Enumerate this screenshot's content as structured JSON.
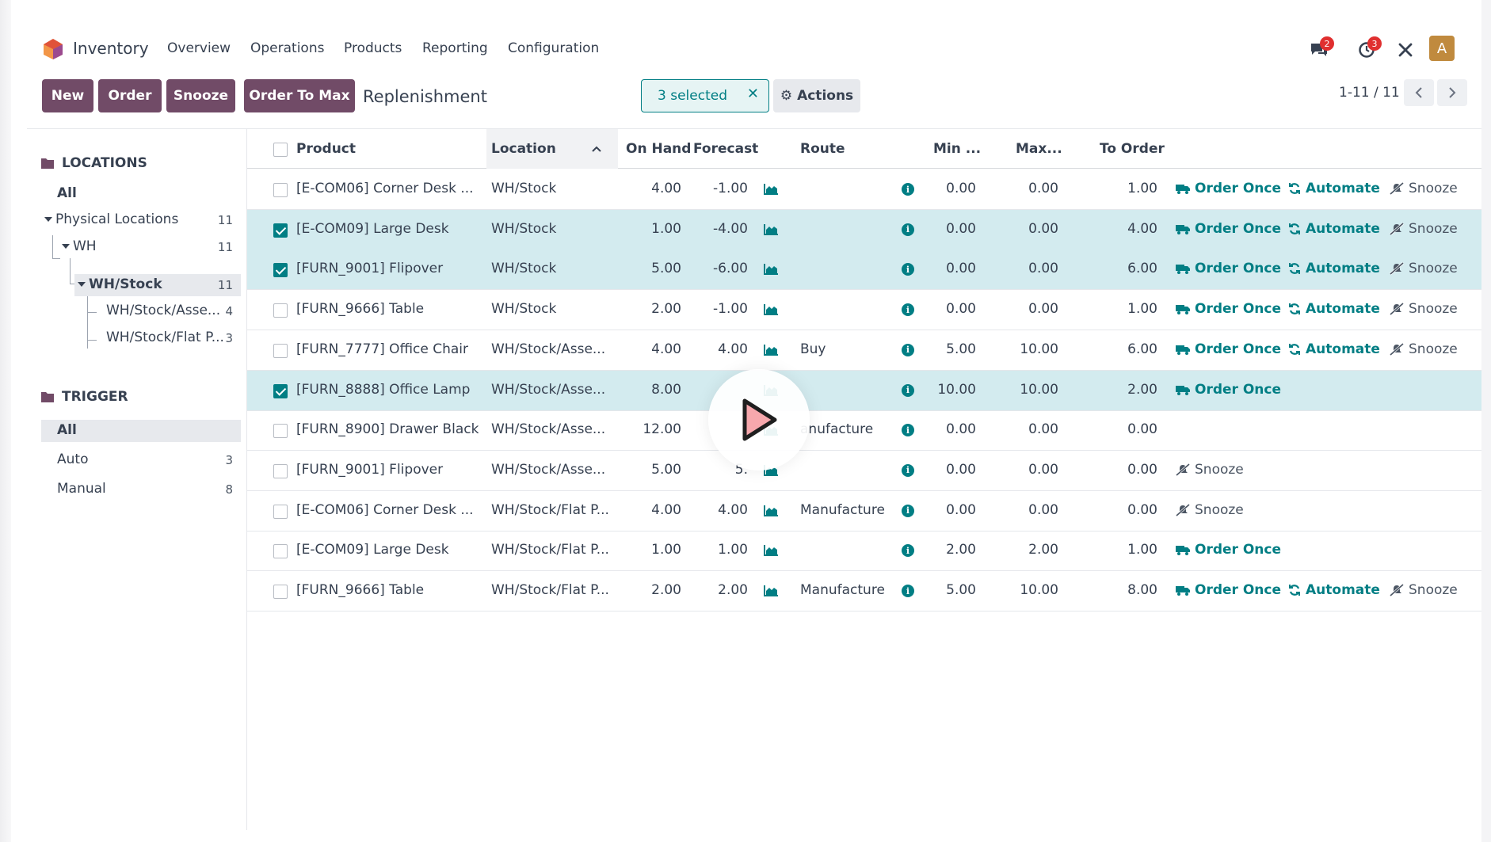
{
  "app": {
    "name": "Inventory",
    "menu": [
      "Overview",
      "Operations",
      "Products",
      "Reporting",
      "Configuration"
    ],
    "badges": {
      "messages": "2",
      "activities": "3"
    },
    "avatar": "A",
    "brand_color": "#714b67",
    "accent_color": "#017e84"
  },
  "toolbar": {
    "new_label": "New",
    "order_label": "Order",
    "snooze_label": "Snooze",
    "order_to_max_label": "Order To Max",
    "breadcrumb": "Replenishment",
    "selected_label": "3 selected",
    "actions_label": "Actions",
    "pager": "1-11 / 11"
  },
  "sidebar": {
    "locations_title": "LOCATIONS",
    "locations": [
      {
        "label": "All",
        "count": ""
      },
      {
        "label": "Physical Locations",
        "count": "11"
      },
      {
        "label": "WH",
        "count": "11"
      },
      {
        "label": "WH/Stock",
        "count": "11"
      },
      {
        "label": "WH/Stock/Asse...",
        "count": "4"
      },
      {
        "label": "WH/Stock/Flat P...",
        "count": "3"
      }
    ],
    "trigger_title": "TRIGGER",
    "triggers": [
      {
        "label": "All",
        "count": ""
      },
      {
        "label": "Auto",
        "count": "3"
      },
      {
        "label": "Manual",
        "count": "8"
      }
    ]
  },
  "table": {
    "headers": [
      "Product",
      "Location",
      "On Hand",
      "Forecast",
      "Route",
      "Min ...",
      "Max...",
      "To Order"
    ],
    "actions": {
      "order_once": "Order Once",
      "automate": "Automate",
      "snooze": "Snooze"
    },
    "rows": [
      {
        "selected": false,
        "product": "[E-COM06] Corner Desk ...",
        "location": "WH/Stock",
        "on_hand": "4.00",
        "forecast": "-1.00",
        "route": "",
        "min": "0.00",
        "max": "0.00",
        "to_order": "1.00",
        "order_once": true,
        "automate": true,
        "snooze": true
      },
      {
        "selected": true,
        "product": "[E-COM09] Large Desk",
        "location": "WH/Stock",
        "on_hand": "1.00",
        "forecast": "-4.00",
        "route": "",
        "min": "0.00",
        "max": "0.00",
        "to_order": "4.00",
        "order_once": true,
        "automate": true,
        "snooze": true
      },
      {
        "selected": true,
        "product": "[FURN_9001] Flipover",
        "location": "WH/Stock",
        "on_hand": "5.00",
        "forecast": "-6.00",
        "route": "",
        "min": "0.00",
        "max": "0.00",
        "to_order": "6.00",
        "order_once": true,
        "automate": true,
        "snooze": true
      },
      {
        "selected": false,
        "product": "[FURN_9666] Table",
        "location": "WH/Stock",
        "on_hand": "2.00",
        "forecast": "-1.00",
        "route": "",
        "min": "0.00",
        "max": "0.00",
        "to_order": "1.00",
        "order_once": true,
        "automate": true,
        "snooze": true
      },
      {
        "selected": false,
        "product": "[FURN_7777] Office Chair",
        "location": "WH/Stock/Asse...",
        "on_hand": "4.00",
        "forecast": "4.00",
        "route": "Buy",
        "min": "5.00",
        "max": "10.00",
        "to_order": "6.00",
        "order_once": true,
        "automate": true,
        "snooze": true
      },
      {
        "selected": true,
        "product": "[FURN_8888] Office Lamp",
        "location": "WH/Stock/Asse...",
        "on_hand": "8.00",
        "forecast": "",
        "route": "",
        "min": "10.00",
        "max": "10.00",
        "to_order": "2.00",
        "order_once": true,
        "automate": false,
        "snooze": false
      },
      {
        "selected": false,
        "product": "[FURN_8900] Drawer Black",
        "location": "WH/Stock/Asse...",
        "on_hand": "12.00",
        "forecast": "",
        "route": "anufacture",
        "min": "0.00",
        "max": "0.00",
        "to_order": "0.00",
        "order_once": false,
        "automate": false,
        "snooze": false
      },
      {
        "selected": false,
        "product": "[FURN_9001] Flipover",
        "location": "WH/Stock/Asse...",
        "on_hand": "5.00",
        "forecast": "5.",
        "route": "",
        "min": "0.00",
        "max": "0.00",
        "to_order": "0.00",
        "order_once": false,
        "automate": false,
        "snooze": true
      },
      {
        "selected": false,
        "product": "[E-COM06] Corner Desk ...",
        "location": "WH/Stock/Flat P...",
        "on_hand": "4.00",
        "forecast": "4.00",
        "route": "Manufacture",
        "min": "0.00",
        "max": "0.00",
        "to_order": "0.00",
        "order_once": false,
        "automate": false,
        "snooze": true
      },
      {
        "selected": false,
        "product": "[E-COM09] Large Desk",
        "location": "WH/Stock/Flat P...",
        "on_hand": "1.00",
        "forecast": "1.00",
        "route": "",
        "min": "2.00",
        "max": "2.00",
        "to_order": "1.00",
        "order_once": true,
        "automate": false,
        "snooze": false
      },
      {
        "selected": false,
        "product": "[FURN_9666] Table",
        "location": "WH/Stock/Flat P...",
        "on_hand": "2.00",
        "forecast": "2.00",
        "route": "Manufacture",
        "min": "5.00",
        "max": "10.00",
        "to_order": "8.00",
        "order_once": true,
        "automate": true,
        "snooze": true
      }
    ]
  }
}
